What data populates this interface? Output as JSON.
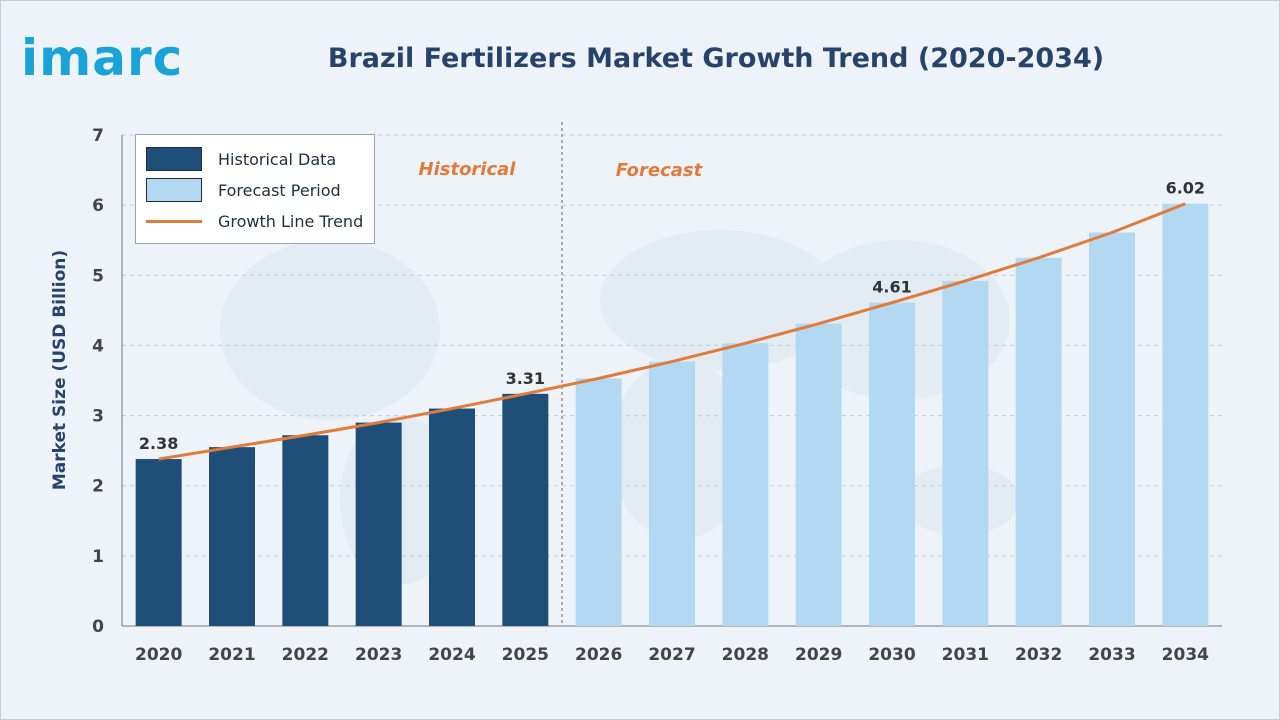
{
  "brand": {
    "logo_text": "imarc",
    "logo_color": "#1aa3d9"
  },
  "chart_data": {
    "type": "bar",
    "title": "Brazil Fertilizers Market Growth Trend (2020-2034)",
    "ylabel": "Market Size (USD Billion)",
    "xlabel": "",
    "ylim": [
      0,
      7
    ],
    "yticks": [
      0,
      1,
      2,
      3,
      4,
      5,
      6,
      7
    ],
    "grid": true,
    "categories": [
      "2020",
      "2021",
      "2022",
      "2023",
      "2024",
      "2025",
      "2026",
      "2027",
      "2028",
      "2029",
      "2030",
      "2031",
      "2032",
      "2033",
      "2034"
    ],
    "values": [
      2.38,
      2.55,
      2.72,
      2.9,
      3.1,
      3.31,
      3.53,
      3.77,
      4.03,
      4.31,
      4.61,
      4.92,
      5.25,
      5.61,
      6.02
    ],
    "series": [
      {
        "name": "Historical Data",
        "categories": [
          "2020",
          "2021",
          "2022",
          "2023",
          "2024",
          "2025"
        ],
        "color": "#1f4e79"
      },
      {
        "name": "Forecast Period",
        "categories": [
          "2026",
          "2027",
          "2028",
          "2029",
          "2030",
          "2031",
          "2032",
          "2033",
          "2034"
        ],
        "color": "#b3d9f2"
      }
    ],
    "trend_line": {
      "name": "Growth Line Trend",
      "color": "#e07b39"
    },
    "data_labels": [
      {
        "category": "2020",
        "text": "2.38"
      },
      {
        "category": "2025",
        "text": "3.31"
      },
      {
        "category": "2030",
        "text": "4.61"
      },
      {
        "category": "2034",
        "text": "6.02"
      }
    ],
    "period_labels": {
      "historical": "Historical",
      "forecast": "Forecast"
    },
    "legend_position": "top-left"
  }
}
